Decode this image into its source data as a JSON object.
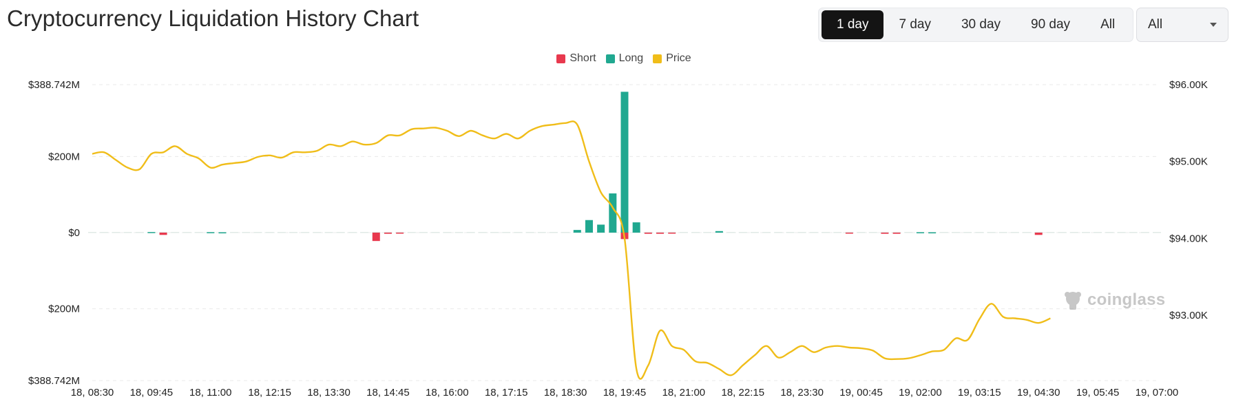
{
  "page": {
    "title": "Cryptocurrency Liquidation History Chart"
  },
  "range_buttons": [
    {
      "label": "1 day",
      "active": true
    },
    {
      "label": "7 day",
      "active": false
    },
    {
      "label": "30 day",
      "active": false
    },
    {
      "label": "90 day",
      "active": false
    },
    {
      "label": "All",
      "active": false
    }
  ],
  "filter_select": {
    "value": "All"
  },
  "watermark": {
    "text": "coinglass",
    "icon": "coinglass-logo-icon"
  },
  "colors": {
    "short": "#e8394e",
    "long": "#20a890",
    "price": "#f0bd19"
  },
  "chart_data": {
    "type": "bar+line",
    "legend": [
      {
        "name": "Short",
        "color": "#e8394e"
      },
      {
        "name": "Long",
        "color": "#20a890"
      },
      {
        "name": "Price",
        "color": "#f0bd19"
      }
    ],
    "legend_position": "top-center",
    "grid": true,
    "y_left": {
      "ticks": [
        "$388.742M",
        "$200M",
        "$0",
        "$200M",
        "$388.742M"
      ],
      "min": -388.742,
      "max": 388.742,
      "unit": "$M"
    },
    "y_right": {
      "ticks": [
        "$96.00K",
        "$95.00K",
        "$94.00K",
        "$93.00K"
      ],
      "min": 92.15,
      "max": 96.0,
      "unit": "$K"
    },
    "x_labels": [
      "18, 08:30",
      "18, 09:45",
      "18, 11:00",
      "18, 12:15",
      "18, 13:30",
      "18, 14:45",
      "18, 16:00",
      "18, 17:15",
      "18, 18:30",
      "18, 19:45",
      "18, 21:00",
      "18, 22:15",
      "18, 23:30",
      "19, 00:45",
      "19, 02:00",
      "19, 03:15",
      "19, 04:30",
      "19, 05:45",
      "19, 07:00"
    ],
    "series": [
      {
        "name": "Long",
        "unit": "$M",
        "points": [
          [
            "18, 09:45",
            1.5
          ],
          [
            "18, 11:00",
            1.2
          ],
          [
            "18, 11:15",
            0.8
          ],
          [
            "18, 18:45",
            7
          ],
          [
            "18, 19:00",
            33
          ],
          [
            "18, 19:15",
            21
          ],
          [
            "18, 19:30",
            103
          ],
          [
            "18, 19:45",
            370
          ],
          [
            "18, 20:00",
            27
          ],
          [
            "18, 21:45",
            4
          ],
          [
            "19, 02:00",
            1
          ],
          [
            "19, 02:15",
            0.8
          ]
        ]
      },
      {
        "name": "Short",
        "unit": "$M",
        "points": [
          [
            "18, 10:00",
            -6
          ],
          [
            "18, 14:30",
            -22
          ],
          [
            "18, 14:45",
            -3
          ],
          [
            "18, 15:00",
            -1.5
          ],
          [
            "18, 19:45",
            -17
          ],
          [
            "18, 20:15",
            -3
          ],
          [
            "18, 20:30",
            -3
          ],
          [
            "18, 20:45",
            -1.5
          ],
          [
            "19, 00:30",
            -2
          ],
          [
            "19, 01:15",
            -3
          ],
          [
            "19, 01:30",
            -3
          ],
          [
            "19, 04:30",
            -6
          ]
        ]
      },
      {
        "name": "Price",
        "unit": "$K",
        "points": [
          [
            "18, 08:30",
            95.1
          ],
          [
            "18, 08:45",
            95.12
          ],
          [
            "18, 09:00",
            95.02
          ],
          [
            "18, 09:15",
            94.92
          ],
          [
            "18, 09:30",
            94.9
          ],
          [
            "18, 09:45",
            95.1
          ],
          [
            "18, 10:00",
            95.12
          ],
          [
            "18, 10:15",
            95.2
          ],
          [
            "18, 10:30",
            95.1
          ],
          [
            "18, 10:45",
            95.04
          ],
          [
            "18, 11:00",
            94.92
          ],
          [
            "18, 11:15",
            94.96
          ],
          [
            "18, 11:30",
            94.98
          ],
          [
            "18, 11:45",
            95.0
          ],
          [
            "18, 12:00",
            95.06
          ],
          [
            "18, 12:15",
            95.08
          ],
          [
            "18, 12:30",
            95.05
          ],
          [
            "18, 12:45",
            95.12
          ],
          [
            "18, 13:00",
            95.12
          ],
          [
            "18, 13:15",
            95.14
          ],
          [
            "18, 13:30",
            95.22
          ],
          [
            "18, 13:45",
            95.2
          ],
          [
            "18, 14:00",
            95.26
          ],
          [
            "18, 14:15",
            95.22
          ],
          [
            "18, 14:30",
            95.24
          ],
          [
            "18, 14:45",
            95.34
          ],
          [
            "18, 15:00",
            95.34
          ],
          [
            "18, 15:15",
            95.42
          ],
          [
            "18, 15:30",
            95.43
          ],
          [
            "18, 15:45",
            95.44
          ],
          [
            "18, 16:00",
            95.4
          ],
          [
            "18, 16:15",
            95.33
          ],
          [
            "18, 16:30",
            95.4
          ],
          [
            "18, 16:45",
            95.34
          ],
          [
            "18, 17:00",
            95.3
          ],
          [
            "18, 17:15",
            95.36
          ],
          [
            "18, 17:30",
            95.3
          ],
          [
            "18, 17:45",
            95.4
          ],
          [
            "18, 18:00",
            95.46
          ],
          [
            "18, 18:15",
            95.48
          ],
          [
            "18, 18:30",
            95.5
          ],
          [
            "18, 18:45",
            95.48
          ],
          [
            "18, 19:00",
            95.0
          ],
          [
            "18, 19:15",
            94.6
          ],
          [
            "18, 19:30",
            94.4
          ],
          [
            "18, 19:45",
            94.0
          ],
          [
            "18, 20:00",
            92.3
          ],
          [
            "18, 20:15",
            92.35
          ],
          [
            "18, 20:30",
            92.8
          ],
          [
            "18, 20:45",
            92.6
          ],
          [
            "18, 21:00",
            92.55
          ],
          [
            "18, 21:15",
            92.4
          ],
          [
            "18, 21:30",
            92.38
          ],
          [
            "18, 21:45",
            92.3
          ],
          [
            "18, 22:00",
            92.22
          ],
          [
            "18, 22:15",
            92.35
          ],
          [
            "18, 22:30",
            92.48
          ],
          [
            "18, 22:45",
            92.6
          ],
          [
            "18, 23:00",
            92.45
          ],
          [
            "18, 23:15",
            92.52
          ],
          [
            "18, 23:30",
            92.6
          ],
          [
            "18, 23:45",
            92.52
          ],
          [
            "19, 00:00",
            92.58
          ],
          [
            "19, 00:15",
            92.6
          ],
          [
            "19, 00:30",
            92.58
          ],
          [
            "19, 00:45",
            92.57
          ],
          [
            "19, 01:00",
            92.54
          ],
          [
            "19, 01:15",
            92.44
          ],
          [
            "19, 01:30",
            92.43
          ],
          [
            "19, 01:45",
            92.44
          ],
          [
            "19, 02:00",
            92.48
          ],
          [
            "19, 02:15",
            92.53
          ],
          [
            "19, 02:30",
            92.55
          ],
          [
            "19, 02:45",
            92.7
          ],
          [
            "19, 03:00",
            92.68
          ],
          [
            "19, 03:15",
            92.95
          ],
          [
            "19, 03:30",
            93.15
          ],
          [
            "19, 03:45",
            92.98
          ],
          [
            "19, 04:00",
            92.96
          ],
          [
            "19, 04:15",
            92.94
          ],
          [
            "19, 04:30",
            92.9
          ],
          [
            "19, 04:45",
            92.96
          ]
        ]
      }
    ]
  }
}
